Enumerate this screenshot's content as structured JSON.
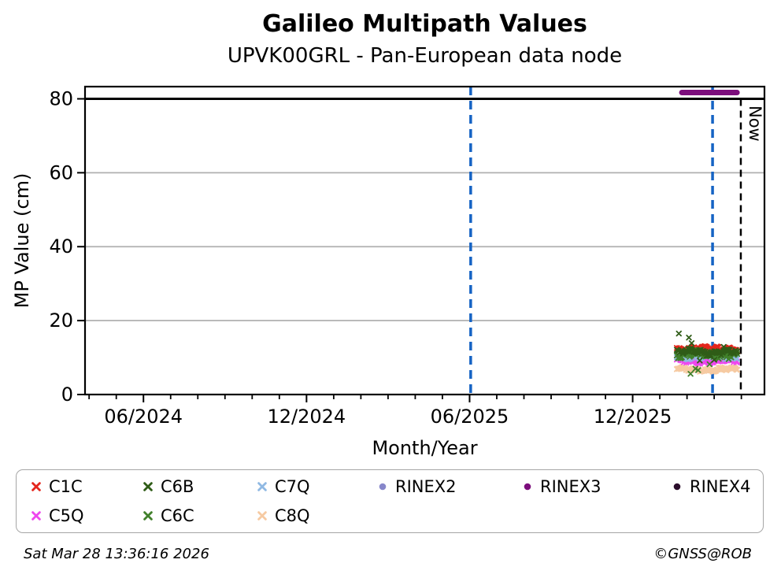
{
  "header": {
    "title": "Galileo Multipath Values",
    "subtitle": "UPVK00GRL - Pan-European data node"
  },
  "footer": {
    "timestamp": "Sat Mar 28 13:36:16 2026",
    "copyright": "©GNSS@ROB"
  },
  "chart_data": {
    "type": "scatter",
    "title": "Galileo Multipath Values",
    "subtitle": "UPVK00GRL - Pan-European data node",
    "xlabel": "Month/Year",
    "ylabel": "MP Value (cm)",
    "x_axis": {
      "unit": "calendar months (axis origin ≈ late 03/2024)",
      "range": [
        0,
        25
      ],
      "major_ticks": [
        {
          "t": 2.15,
          "label": "06/2024"
        },
        {
          "t": 8.15,
          "label": "12/2024"
        },
        {
          "t": 14.15,
          "label": "06/2025"
        },
        {
          "t": 20.15,
          "label": "12/2025"
        }
      ],
      "minor_tick_step": 1,
      "minor_tick_phase": 0.15
    },
    "y_axis": {
      "range": [
        0,
        83.3
      ],
      "ticks": [
        0,
        20,
        40,
        60,
        80
      ]
    },
    "grid": {
      "horizontal": true,
      "vertical": false,
      "color": "#b0b0b0"
    },
    "threshold_line": {
      "value": 80,
      "color": "#000000"
    },
    "event_lines": [
      {
        "t": 14.19,
        "style": "dashed",
        "color": "#1563c4",
        "label": ""
      },
      {
        "t": 23.09,
        "style": "dashed",
        "color": "#1563c4",
        "label": ""
      },
      {
        "t": 24.13,
        "style": "dashed",
        "color": "#000000",
        "label": "Now"
      }
    ],
    "series": [
      {
        "name": "C1C",
        "marker": "x",
        "color": "#e4251c",
        "band": {
          "t0": 21.78,
          "t1": 24.0,
          "n": 72,
          "mean": 12.4,
          "wave": 0.5,
          "noise": 0.3,
          "seed": 7
        },
        "outliers": []
      },
      {
        "name": "C5Q",
        "marker": "x",
        "color": "#ee46ee",
        "band": {
          "t0": 21.78,
          "t1": 24.0,
          "n": 72,
          "mean": 9.0,
          "wave": 0.4,
          "noise": 0.25,
          "seed": 13
        },
        "outliers": []
      },
      {
        "name": "C6B",
        "marker": "x",
        "color": "#2f5c17",
        "band": {
          "t0": 21.78,
          "t1": 24.0,
          "n": 72,
          "mean": 11.5,
          "wave": 0.5,
          "noise": 0.45,
          "seed": 21
        },
        "outliers": [
          [
            21.85,
            16.5
          ],
          [
            22.22,
            15.4
          ],
          [
            22.32,
            13.9
          ],
          [
            22.62,
            9.2
          ],
          [
            23.15,
            9.4
          ],
          [
            23.5,
            12.9
          ]
        ]
      },
      {
        "name": "C6C",
        "marker": "x",
        "color": "#41802b",
        "band": {
          "t0": 21.78,
          "t1": 24.0,
          "n": 72,
          "mean": 10.8,
          "wave": 0.6,
          "noise": 0.6,
          "seed": 29
        },
        "outliers": [
          [
            22.28,
            5.6
          ],
          [
            22.46,
            7.0
          ],
          [
            22.56,
            6.6
          ],
          [
            22.98,
            8.2
          ]
        ]
      },
      {
        "name": "C7Q",
        "marker": "x",
        "color": "#90b9e3",
        "band": {
          "t0": 21.78,
          "t1": 24.0,
          "n": 72,
          "mean": 10.2,
          "wave": 0.45,
          "noise": 0.3,
          "seed": 37
        },
        "outliers": []
      },
      {
        "name": "C8Q",
        "marker": "x",
        "color": "#f6caa2",
        "band": {
          "t0": 21.78,
          "t1": 24.0,
          "n": 72,
          "mean": 6.8,
          "wave": 0.45,
          "noise": 0.25,
          "seed": 43
        },
        "outliers": []
      },
      {
        "name": "RINEX2",
        "marker": "circle",
        "color": "#8787ca",
        "band": null,
        "outliers": []
      },
      {
        "name": "RINEX3",
        "marker": "circle",
        "color": "#7c0e7c",
        "band": null,
        "bar": {
          "t0": 21.96,
          "t1": 23.99,
          "value": 81.7
        },
        "outliers": []
      },
      {
        "name": "RINEX4",
        "marker": "circle",
        "color": "#2c0e2c",
        "band": null,
        "outliers": []
      }
    ],
    "z_order": [
      "C8Q",
      "C5Q",
      "C7Q",
      "C1C",
      "C6C",
      "C6B"
    ],
    "legend": {
      "order": [
        "C1C",
        "C6B",
        "C7Q",
        "RINEX2",
        "RINEX3",
        "RINEX4",
        "C5Q",
        "C6C",
        "C8Q"
      ]
    }
  }
}
